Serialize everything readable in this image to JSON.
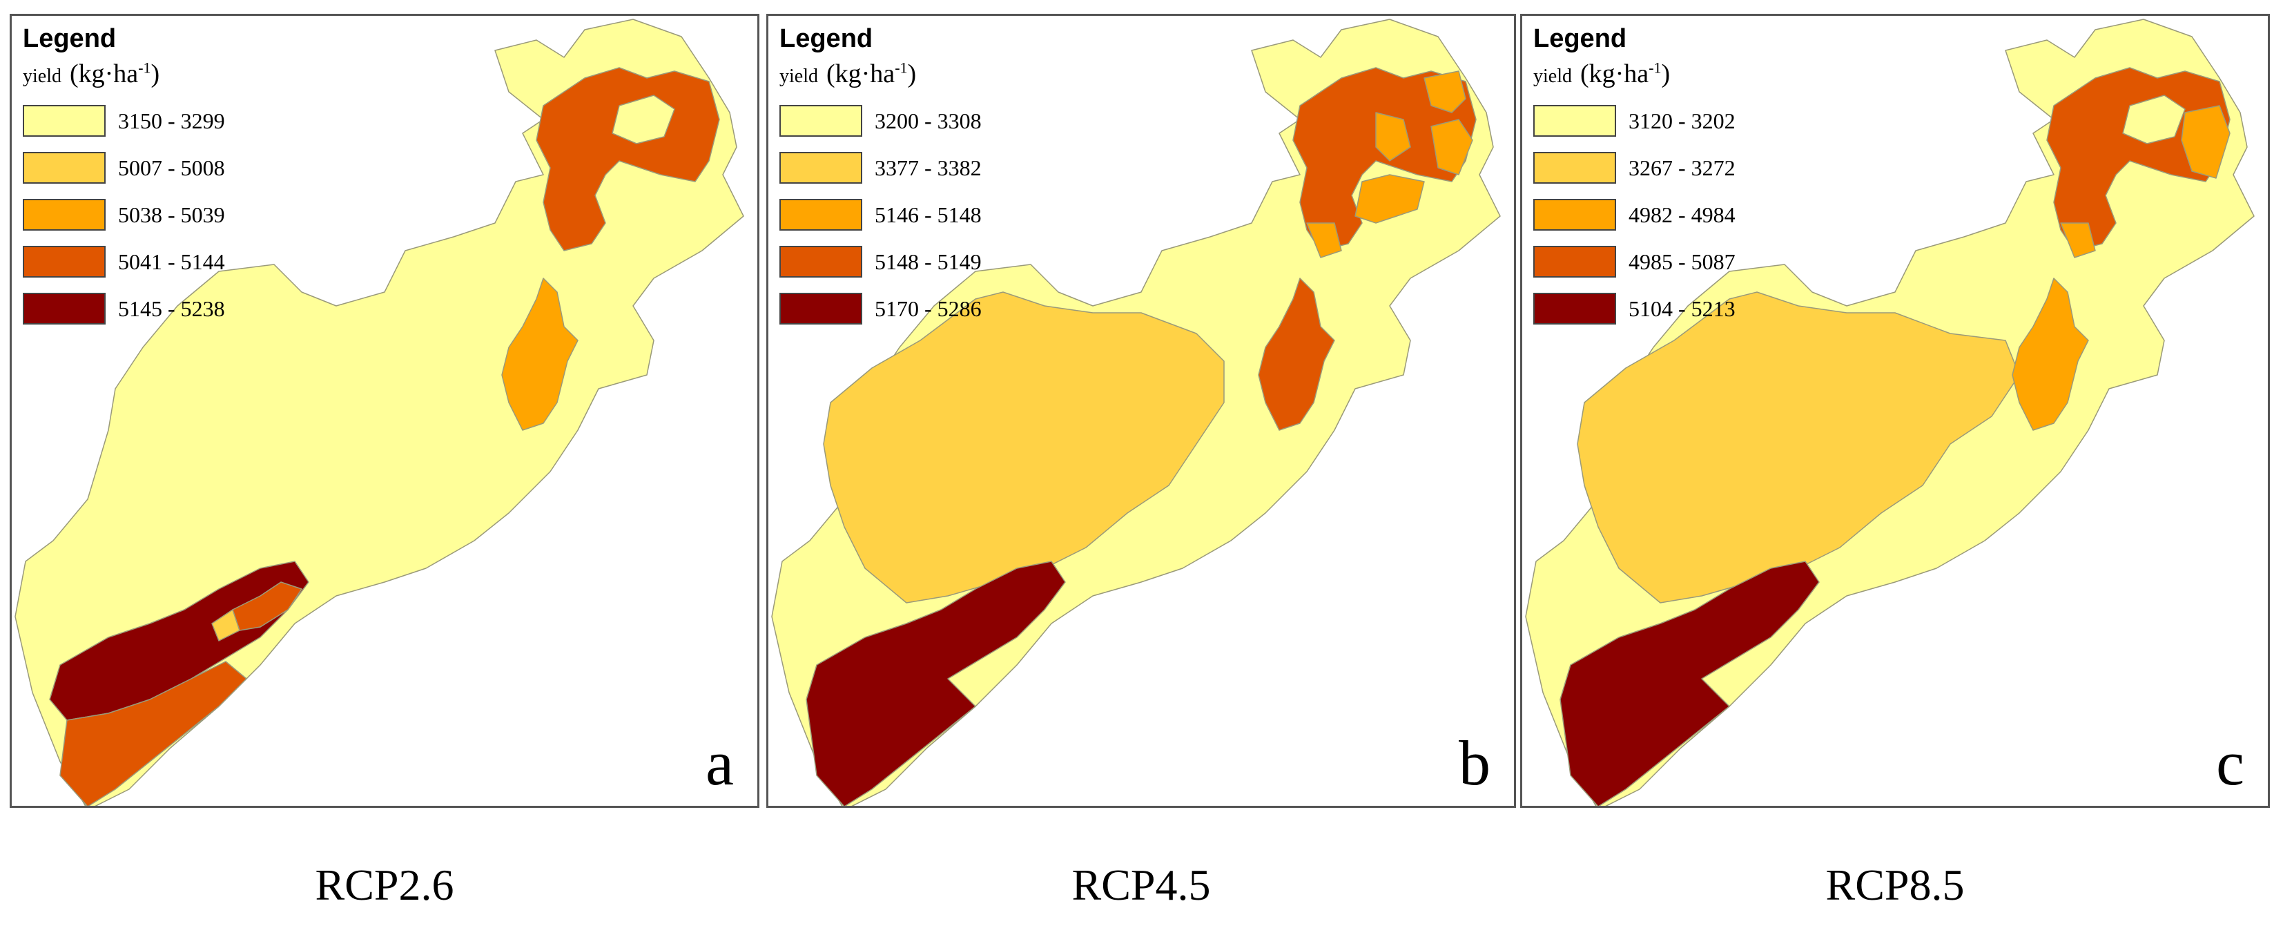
{
  "maps": [
    {
      "legend_title": "Legend",
      "legend_field": "yield",
      "unit_main": "(kg·ha",
      "unit_exp": "-1",
      "unit_close": ")",
      "classes": [
        {
          "label": "3150 - 3299",
          "color": "#ffff99"
        },
        {
          "label": "5007 - 5008",
          "color": "#ffd246"
        },
        {
          "label": "5038 - 5039",
          "color": "#ffa500"
        },
        {
          "label": "5041 - 5144",
          "color": "#e05600"
        },
        {
          "label": "5145 - 5238",
          "color": "#8b0000"
        }
      ],
      "panel_letter": "a",
      "scenario": "RCP2.6"
    },
    {
      "legend_title": "Legend",
      "legend_field": "yield",
      "unit_main": "(kg·ha",
      "unit_exp": "-1",
      "unit_close": ")",
      "classes": [
        {
          "label": "3200 - 3308",
          "color": "#ffff99"
        },
        {
          "label": "3377 - 3382",
          "color": "#ffd246"
        },
        {
          "label": "5146 - 5148",
          "color": "#ffa500"
        },
        {
          "label": "5148 - 5149",
          "color": "#e05600"
        },
        {
          "label": "5170 - 5286",
          "color": "#8b0000"
        }
      ],
      "panel_letter": "b",
      "scenario": "RCP4.5"
    },
    {
      "legend_title": "Legend",
      "legend_field": "yield",
      "unit_main": "(kg·ha",
      "unit_exp": "-1",
      "unit_close": ")",
      "classes": [
        {
          "label": "3120 - 3202",
          "color": "#ffff99"
        },
        {
          "label": "3267 - 3272",
          "color": "#ffd246"
        },
        {
          "label": "4982 - 4984",
          "color": "#ffa500"
        },
        {
          "label": "4985 - 5087",
          "color": "#e05600"
        },
        {
          "label": "5104 - 5213",
          "color": "#8b0000"
        }
      ],
      "panel_letter": "c",
      "scenario": "RCP8.5"
    }
  ]
}
